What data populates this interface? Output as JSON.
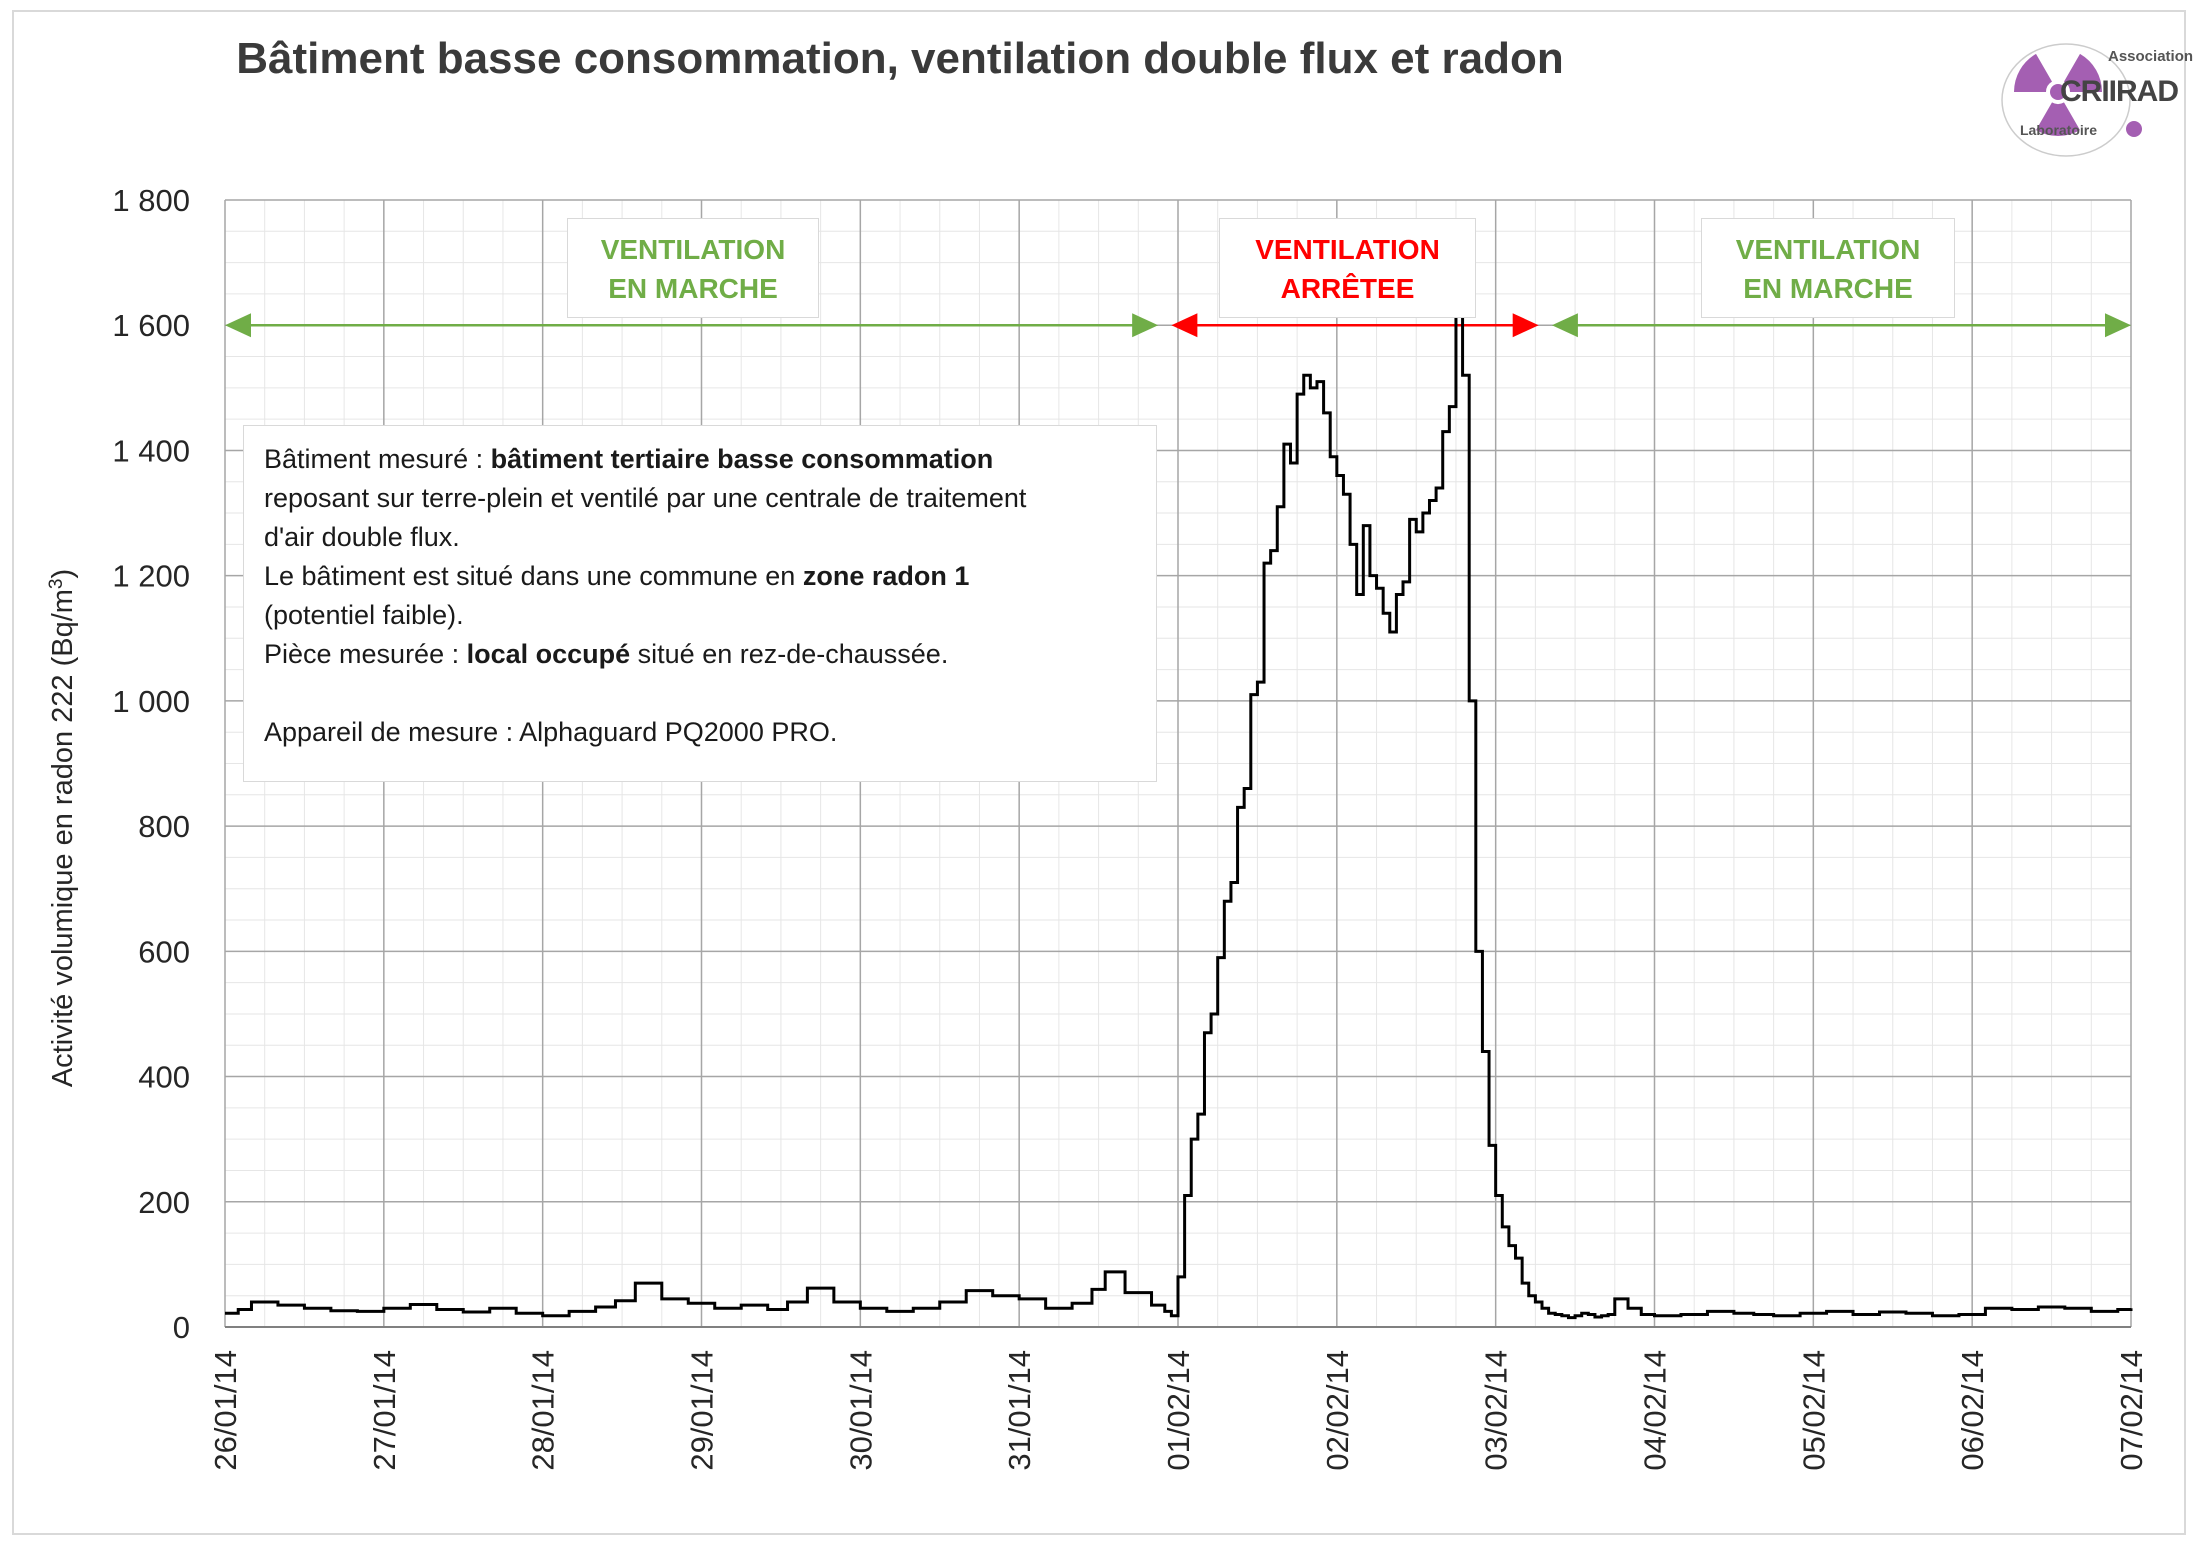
{
  "title": "Bâtiment basse consommation, ventilation double flux et radon",
  "logo": {
    "top_text": "Association",
    "name": "CRIIRAD",
    "bottom_text": "Laboratoire"
  },
  "colors": {
    "on": "#70ad47",
    "off": "#ff0000",
    "line": "#000000",
    "logo": "#a45fb2"
  },
  "periods": [
    {
      "line1": "VENTILATION",
      "line2": "EN MARCHE",
      "state": "on",
      "from": "2014-01-26",
      "to": "2014-01-31T21:00"
    },
    {
      "line1": "VENTILATION",
      "line2": "ARRÊTEE",
      "state": "off",
      "from": "2014-01-31T23:00",
      "to": "2014-02-03T06:30"
    },
    {
      "line1": "VENTILATION",
      "line2": "EN MARCHE",
      "state": "on",
      "from": "2014-02-03T08:30",
      "to": "2014-02-07"
    }
  ],
  "info": {
    "l1_pre": "Bâtiment mesuré : ",
    "l1_bold": "bâtiment tertiaire basse consommation",
    "l2": "reposant sur terre-plein et ventilé par une centrale de traitement",
    "l3": "d'air double flux.",
    "l4_pre": "Le bâtiment est situé dans une commune en ",
    "l4_bold": "zone radon 1",
    "l5": "(potentiel faible).",
    "l6_pre": "Pièce mesurée : ",
    "l6_bold": "local occupé",
    "l6_post": " situé en rez-de-chaussée.",
    "l7": "Appareil de mesure : Alphaguard PQ2000 PRO."
  },
  "chart_data": {
    "type": "line",
    "title": "Bâtiment basse consommation, ventilation double flux et radon",
    "ylabel_main": "Activité volumique en radon 222 (Bq/m",
    "ylabel_sup": "3",
    "ylabel_end": ")",
    "xlabel": "",
    "ylim": [
      0,
      1800
    ],
    "yticks": [
      "0",
      "200",
      "400",
      "600",
      "800",
      "1 000",
      "1 200",
      "1 400",
      "1 600",
      "1 800"
    ],
    "xlim": [
      "2014-01-26",
      "2014-02-07"
    ],
    "xtick_labels": [
      "26/01/14",
      "27/01/14",
      "28/01/14",
      "29/01/14",
      "30/01/14",
      "31/01/14",
      "01/02/14",
      "02/02/14",
      "03/02/14",
      "04/02/14",
      "05/02/14",
      "06/02/14",
      "07/02/14"
    ],
    "grid": true,
    "series": [
      {
        "step": true,
        "x": [
          "2014-01-26T00:00",
          "2014-01-26T02:00",
          "2014-01-26T04:00",
          "2014-01-26T08:00",
          "2014-01-26T12:00",
          "2014-01-26T16:00",
          "2014-01-26T20:00",
          "2014-01-27T00:00",
          "2014-01-27T04:00",
          "2014-01-27T08:00",
          "2014-01-27T12:00",
          "2014-01-27T16:00",
          "2014-01-27T20:00",
          "2014-01-28T00:00",
          "2014-01-28T04:00",
          "2014-01-28T08:00",
          "2014-01-28T11:00",
          "2014-01-28T14:00",
          "2014-01-28T18:00",
          "2014-01-28T22:00",
          "2014-01-29T02:00",
          "2014-01-29T06:00",
          "2014-01-29T10:00",
          "2014-01-29T13:00",
          "2014-01-29T16:00",
          "2014-01-29T20:00",
          "2014-01-30T00:00",
          "2014-01-30T04:00",
          "2014-01-30T08:00",
          "2014-01-30T12:00",
          "2014-01-30T16:00",
          "2014-01-30T20:00",
          "2014-01-31T00:00",
          "2014-01-31T04:00",
          "2014-01-31T08:00",
          "2014-01-31T11:00",
          "2014-01-31T13:00",
          "2014-01-31T16:00",
          "2014-01-31T20:00",
          "2014-01-31T22:00",
          "2014-01-31T23:00",
          "2014-02-01T00:00",
          "2014-02-01T01:00",
          "2014-02-01T02:00",
          "2014-02-01T03:00",
          "2014-02-01T04:00",
          "2014-02-01T05:00",
          "2014-02-01T06:00",
          "2014-02-01T07:00",
          "2014-02-01T08:00",
          "2014-02-01T09:00",
          "2014-02-01T10:00",
          "2014-02-01T11:00",
          "2014-02-01T12:00",
          "2014-02-01T13:00",
          "2014-02-01T14:00",
          "2014-02-01T15:00",
          "2014-02-01T16:00",
          "2014-02-01T17:00",
          "2014-02-01T18:00",
          "2014-02-01T19:00",
          "2014-02-01T20:00",
          "2014-02-01T21:00",
          "2014-02-01T22:00",
          "2014-02-01T23:00",
          "2014-02-02T00:00",
          "2014-02-02T01:00",
          "2014-02-02T02:00",
          "2014-02-02T03:00",
          "2014-02-02T04:00",
          "2014-02-02T05:00",
          "2014-02-02T06:00",
          "2014-02-02T07:00",
          "2014-02-02T08:00",
          "2014-02-02T09:00",
          "2014-02-02T10:00",
          "2014-02-02T11:00",
          "2014-02-02T12:00",
          "2014-02-02T13:00",
          "2014-02-02T14:00",
          "2014-02-02T15:00",
          "2014-02-02T16:00",
          "2014-02-02T17:00",
          "2014-02-02T18:00",
          "2014-02-02T19:00",
          "2014-02-02T20:00",
          "2014-02-02T21:00",
          "2014-02-02T22:00",
          "2014-02-02T23:00",
          "2014-02-03T00:00",
          "2014-02-03T01:00",
          "2014-02-03T02:00",
          "2014-02-03T03:00",
          "2014-02-03T04:00",
          "2014-02-03T05:00",
          "2014-02-03T06:00",
          "2014-02-03T07:00",
          "2014-02-03T08:00",
          "2014-02-03T09:00",
          "2014-02-03T10:00",
          "2014-02-03T11:00",
          "2014-02-03T12:00",
          "2014-02-03T13:00",
          "2014-02-03T14:00",
          "2014-02-03T15:00",
          "2014-02-03T16:00",
          "2014-02-03T17:00",
          "2014-02-03T18:00",
          "2014-02-03T20:00",
          "2014-02-03T22:00",
          "2014-02-04T00:00",
          "2014-02-04T04:00",
          "2014-02-04T08:00",
          "2014-02-04T12:00",
          "2014-02-04T15:00",
          "2014-02-04T18:00",
          "2014-02-04T22:00",
          "2014-02-05T02:00",
          "2014-02-05T06:00",
          "2014-02-05T10:00",
          "2014-02-05T14:00",
          "2014-02-05T18:00",
          "2014-02-05T22:00",
          "2014-02-06T02:00",
          "2014-02-06T06:00",
          "2014-02-06T10:00",
          "2014-02-06T14:00",
          "2014-02-06T18:00",
          "2014-02-06T22:00",
          "2014-02-07T00:00"
        ],
        "y": [
          22,
          28,
          40,
          35,
          30,
          26,
          25,
          30,
          36,
          28,
          24,
          30,
          22,
          18,
          25,
          32,
          42,
          70,
          45,
          38,
          30,
          35,
          28,
          40,
          62,
          40,
          30,
          25,
          30,
          40,
          58,
          50,
          45,
          30,
          38,
          60,
          88,
          55,
          35,
          25,
          18,
          80,
          210,
          300,
          340,
          470,
          500,
          590,
          680,
          710,
          830,
          860,
          1010,
          1030,
          1220,
          1240,
          1310,
          1410,
          1380,
          1490,
          1520,
          1500,
          1510,
          1460,
          1390,
          1360,
          1330,
          1250,
          1170,
          1280,
          1200,
          1180,
          1140,
          1110,
          1170,
          1190,
          1290,
          1270,
          1300,
          1320,
          1340,
          1430,
          1470,
          1660,
          1520,
          1000,
          600,
          440,
          290,
          210,
          160,
          130,
          110,
          70,
          50,
          40,
          30,
          22,
          20,
          18,
          15,
          18,
          22,
          20,
          16,
          18,
          20,
          45,
          30,
          20,
          18,
          20,
          25,
          22,
          20,
          18,
          22,
          25,
          20,
          24,
          22,
          18,
          20,
          30,
          28,
          32,
          30,
          25,
          28,
          30
        ]
      }
    ]
  }
}
